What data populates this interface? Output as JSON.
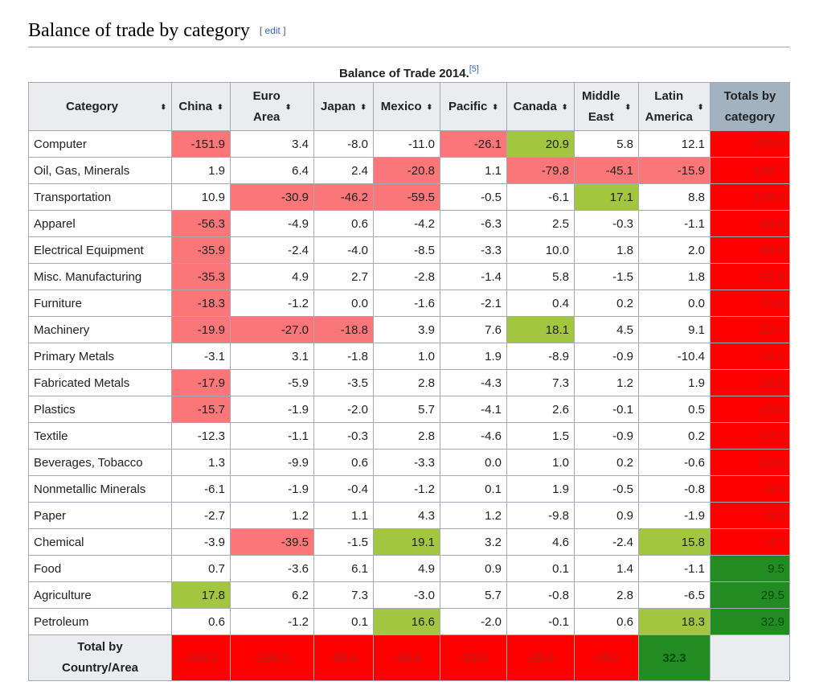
{
  "heading": {
    "title": "Balance of trade by category",
    "edit_open": "[ ",
    "edit_link": "edit",
    "edit_close": " ]"
  },
  "table": {
    "caption": "Balance of Trade 2014.",
    "caption_ref": "[5]",
    "headers": [
      {
        "line1": "Category",
        "line2": ""
      },
      {
        "line1": "China",
        "line2": ""
      },
      {
        "line1": "Euro",
        "line2": "Area"
      },
      {
        "line1": "Japan",
        "line2": ""
      },
      {
        "line1": "Mexico",
        "line2": ""
      },
      {
        "line1": "Pacific",
        "line2": ""
      },
      {
        "line1": "Canada",
        "line2": ""
      },
      {
        "line1": "Middle",
        "line2": "East"
      },
      {
        "line1": "Latin",
        "line2": "America"
      },
      {
        "line1": "Totals by",
        "line2": "category"
      }
    ],
    "sort_icon": "⬍",
    "rows": [
      {
        "category": "Computer",
        "values": [
          "-151.9",
          "3.4",
          "-8.0",
          "-11.0",
          "-26.1",
          "20.9",
          "5.8",
          "12.1"
        ],
        "total": "-155.0",
        "highlight": [
          "neg",
          "",
          "",
          "",
          "neg",
          "pos",
          "",
          ""
        ],
        "total_class": "red"
      },
      {
        "category": "Oil, Gas, Minerals",
        "values": [
          "1.9",
          "6.4",
          "2.4",
          "-20.8",
          "1.1",
          "-79.8",
          "-45.1",
          "-15.9"
        ],
        "total": "-149.7",
        "highlight": [
          "",
          "",
          "",
          "neg",
          "",
          "neg",
          "neg",
          "neg"
        ],
        "total_class": "red"
      },
      {
        "category": "Transportation",
        "values": [
          "10.9",
          "-30.9",
          "-46.2",
          "-59.5",
          "-0.5",
          "-6.1",
          "17.1",
          "8.8"
        ],
        "total": "-106.3",
        "highlight": [
          "",
          "neg",
          "neg",
          "neg",
          "",
          "",
          "pos",
          ""
        ],
        "total_class": "red"
      },
      {
        "category": "Apparel",
        "values": [
          "-56.3",
          "-4.9",
          "0.6",
          "-4.2",
          "-6.3",
          "2.5",
          "-0.3",
          "-1.1"
        ],
        "total": "-69.9",
        "highlight": [
          "neg",
          "",
          "",
          "",
          "",
          "",
          "",
          ""
        ],
        "total_class": "red"
      },
      {
        "category": "Electrical Equipment",
        "values": [
          "-35.9",
          "-2.4",
          "-4.0",
          "-8.5",
          "-3.3",
          "10.0",
          "1.8",
          "2.0"
        ],
        "total": "-40.4",
        "highlight": [
          "neg",
          "",
          "",
          "",
          "",
          "",
          "",
          ""
        ],
        "total_class": "red"
      },
      {
        "category": "Misc. Manufacturing",
        "values": [
          "-35.3",
          "4.9",
          "2.7",
          "-2.8",
          "-1.4",
          "5.8",
          "-1.5",
          "1.8"
        ],
        "total": "-25.8",
        "highlight": [
          "neg",
          "",
          "",
          "",
          "",
          "",
          "",
          ""
        ],
        "total_class": "red"
      },
      {
        "category": "Furniture",
        "values": [
          "-18.3",
          "-1.2",
          "0.0",
          "-1.6",
          "-2.1",
          "0.4",
          "0.2",
          "0.0"
        ],
        "total": "-22.6",
        "highlight": [
          "neg",
          "",
          "",
          "",
          "",
          "",
          "",
          ""
        ],
        "total_class": "red"
      },
      {
        "category": "Machinery",
        "values": [
          "-19.9",
          "-27.0",
          "-18.8",
          "3.9",
          "7.6",
          "18.1",
          "4.5",
          "9.1"
        ],
        "total": "-22.4",
        "highlight": [
          "neg",
          "neg",
          "neg",
          "",
          "",
          "pos",
          "",
          ""
        ],
        "total_class": "red"
      },
      {
        "category": "Primary Metals",
        "values": [
          "-3.1",
          "3.1",
          "-1.8",
          "1.0",
          "1.9",
          "-8.9",
          "-0.9",
          "-10.4"
        ],
        "total": "-19.1",
        "highlight": [
          "",
          "",
          "",
          "",
          "",
          "",
          "",
          ""
        ],
        "total_class": "red"
      },
      {
        "category": "Fabricated Metals",
        "values": [
          "-17.9",
          "-5.9",
          "-3.5",
          "2.8",
          "-4.3",
          "7.3",
          "1.2",
          "1.9"
        ],
        "total": "-18.5",
        "highlight": [
          "neg",
          "",
          "",
          "",
          "",
          "",
          "",
          ""
        ],
        "total_class": "red"
      },
      {
        "category": "Plastics",
        "values": [
          "-15.7",
          "-1.9",
          "-2.0",
          "5.7",
          "-4.1",
          "2.6",
          "-0.1",
          "0.5"
        ],
        "total": "-15.0",
        "highlight": [
          "neg",
          "",
          "",
          "",
          "",
          "",
          "",
          ""
        ],
        "total_class": "red"
      },
      {
        "category": "Textile",
        "values": [
          "-12.3",
          "-1.1",
          "-0.3",
          "2.8",
          "-4.6",
          "1.5",
          "-0.9",
          "0.2"
        ],
        "total": "-14.7",
        "highlight": [
          "",
          "",
          "",
          "",
          "",
          "",
          "",
          ""
        ],
        "total_class": "red"
      },
      {
        "category": "Beverages, Tobacco",
        "values": [
          "1.3",
          "-9.9",
          "0.6",
          "-3.3",
          "0.0",
          "1.0",
          "0.2",
          "-0.6"
        ],
        "total": "-10.6",
        "highlight": [
          "",
          "",
          "",
          "",
          "",
          "",
          "",
          ""
        ],
        "total_class": "red"
      },
      {
        "category": "Nonmetallic Minerals",
        "values": [
          "-6.1",
          "-1.9",
          "-0.4",
          "-1.2",
          "0.1",
          "1.9",
          "-0.5",
          "-0.8"
        ],
        "total": "-8.9",
        "highlight": [
          "",
          "",
          "",
          "",
          "",
          "",
          "",
          ""
        ],
        "total_class": "red"
      },
      {
        "category": "Paper",
        "values": [
          "-2.7",
          "1.2",
          "1.1",
          "4.3",
          "1.2",
          "-9.8",
          "0.9",
          "-1.9"
        ],
        "total": "-5.8",
        "highlight": [
          "",
          "",
          "",
          "",
          "",
          "",
          "",
          ""
        ],
        "total_class": "red"
      },
      {
        "category": "Chemical",
        "values": [
          "-3.9",
          "-39.5",
          "-1.5",
          "19.1",
          "3.2",
          "4.6",
          "-2.4",
          "15.8"
        ],
        "total": "-4.7",
        "highlight": [
          "",
          "neg",
          "",
          "pos",
          "",
          "",
          "",
          "pos"
        ],
        "total_class": "red"
      },
      {
        "category": "Food",
        "values": [
          "0.7",
          "-3.6",
          "6.1",
          "4.9",
          "0.9",
          "0.1",
          "1.4",
          "-1.1"
        ],
        "total": "9.5",
        "highlight": [
          "",
          "",
          "",
          "",
          "",
          "",
          "",
          ""
        ],
        "total_class": "green"
      },
      {
        "category": "Agriculture",
        "values": [
          "17.8",
          "6.2",
          "7.3",
          "-3.0",
          "5.7",
          "-0.8",
          "2.8",
          "-6.5"
        ],
        "total": "29.5",
        "highlight": [
          "pos",
          "",
          "",
          "",
          "",
          "",
          "",
          ""
        ],
        "total_class": "green"
      },
      {
        "category": "Petroleum",
        "values": [
          "0.6",
          "-1.2",
          "0.1",
          "16.6",
          "-2.0",
          "-0.1",
          "0.6",
          "18.3"
        ],
        "total": "32.9",
        "highlight": [
          "",
          "",
          "",
          "pos",
          "",
          "",
          "",
          "pos"
        ],
        "total_class": "green"
      }
    ],
    "footer": {
      "label_line1": "Total by",
      "label_line2": "Country/Area",
      "values": [
        "-346.1",
        "-106.1",
        "-65.6",
        "-54.9",
        "-33.0",
        "-29.0",
        "-15.1",
        "32.3"
      ],
      "classes": [
        "red",
        "red",
        "red",
        "red",
        "red",
        "red",
        "red",
        "green"
      ]
    }
  },
  "colors": {
    "negative_highlight": "#fa7679",
    "positive_highlight": "#a3c640",
    "total_negative": "#ff0000",
    "total_positive": "#228b22",
    "header_bg": "#eaecf0",
    "totals_header_bg": "#a2b2be"
  }
}
